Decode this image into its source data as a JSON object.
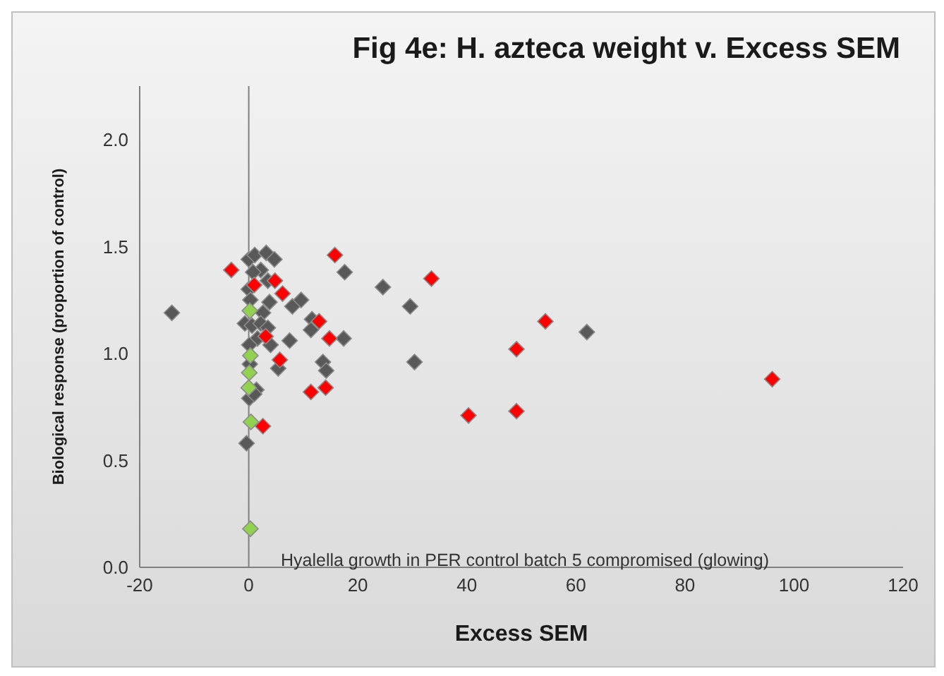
{
  "chart_data": {
    "type": "scatter",
    "title": "Fig 4e: H. azteca weight v. Excess SEM",
    "xlabel": "Excess SEM",
    "ylabel": "Biological response (proportion of control)",
    "annotations": [
      "Hyalella growth in PER control batch 5 compromised (glowing)"
    ],
    "xlim": [
      -20,
      120
    ],
    "xticks": [
      -20,
      0,
      20,
      40,
      60,
      80,
      100,
      120
    ],
    "ylim": [
      0,
      2.25
    ],
    "yticks": [
      {
        "value": 0,
        "label": "0.0"
      },
      0.5,
      {
        "value": 1,
        "label": "1.0"
      },
      1.5,
      {
        "value": 2,
        "label": "2.0"
      }
    ],
    "grid": false,
    "legend": false,
    "marker": "diamond",
    "ref_lines": [
      {
        "axis": "x",
        "value": 0,
        "color": "#7f7f7f"
      }
    ],
    "series": [
      {
        "color": "#595959",
        "x": [
          -14.1,
          0,
          1.1,
          3.2,
          4.7,
          2.2,
          0.8,
          3.5,
          0,
          0.3,
          3.8,
          8.0,
          9.6,
          2.6,
          -0.7,
          0.6,
          2.2,
          3.5,
          11.6,
          11.4,
          1.6,
          4.0,
          0.1,
          7.5,
          17.4,
          17.6,
          24.6,
          29.6,
          30.4,
          62.0,
          0.2,
          5.4,
          13.6,
          14.2,
          1.4,
          0.1,
          -0.4,
          1.0
        ],
        "values": [
          1.19,
          1.44,
          1.46,
          1.47,
          1.44,
          1.39,
          1.38,
          1.34,
          1.3,
          1.25,
          1.24,
          1.22,
          1.25,
          1.19,
          1.14,
          1.13,
          1.14,
          1.12,
          1.16,
          1.11,
          1.07,
          1.04,
          1.04,
          1.06,
          1.07,
          1.38,
          1.31,
          1.22,
          0.96,
          1.1,
          0.95,
          0.93,
          0.96,
          0.92,
          0.83,
          0.79,
          0.58,
          0.81
        ]
      },
      {
        "color": "#ff0000",
        "x": [
          -3.2,
          1.0,
          4.8,
          6.2,
          15.8,
          33.5,
          12.9,
          14.8,
          3.1,
          5.7,
          11.4,
          14.1,
          2.6,
          40.3,
          49.1,
          49.1,
          54.4,
          96.0
        ],
        "values": [
          1.39,
          1.32,
          1.34,
          1.28,
          1.46,
          1.35,
          1.15,
          1.07,
          1.08,
          0.97,
          0.82,
          0.84,
          0.66,
          0.71,
          0.73,
          1.02,
          1.15,
          0.88
        ]
      },
      {
        "color": "#92d050",
        "x": [
          0.2,
          0.3,
          0.1,
          0,
          0.4,
          0.3
        ],
        "values": [
          1.2,
          0.99,
          0.91,
          0.84,
          0.68,
          0.18
        ]
      }
    ]
  }
}
